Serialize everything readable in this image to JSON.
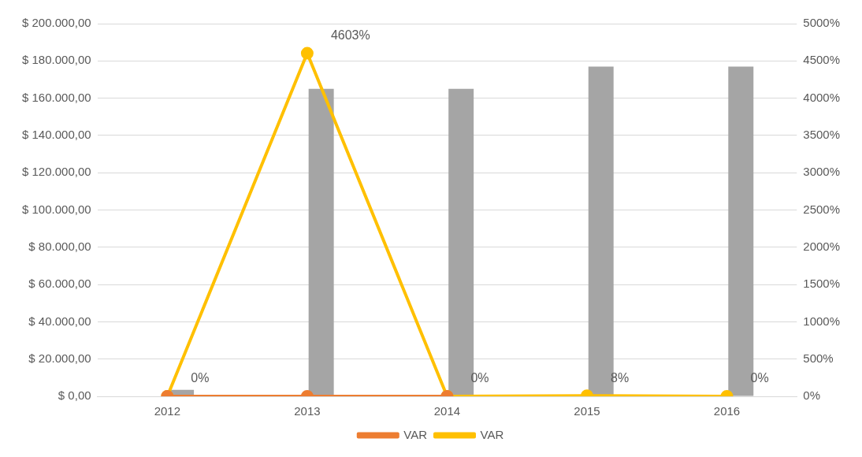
{
  "chart_data": {
    "type": "bar",
    "categories": [
      "2012",
      "2013",
      "2014",
      "2015",
      "2016"
    ],
    "series": [
      {
        "color": "#5b9bd5",
        "values": [
          0,
          0,
          0,
          0,
          0
        ]
      },
      {
        "color": "#a5a5a5",
        "values": [
          3500,
          165000,
          165000,
          177000,
          177000
        ]
      },
      {
        "type": "line",
        "axis": "y2",
        "name": "VAR",
        "color": "#ed7d31",
        "values": [
          0,
          0,
          0,
          null,
          null
        ]
      },
      {
        "type": "line",
        "axis": "y2",
        "name": "VAR",
        "color": "#ffc000",
        "values": [
          0,
          4603,
          0,
          8,
          0
        ],
        "value_labels": [
          "0%",
          "4603%",
          "0%",
          "8%",
          "0%"
        ]
      }
    ],
    "ylim": [
      0,
      200000
    ],
    "yticks": [
      {
        "value": 0,
        "label": "$ 0,00"
      },
      {
        "value": 20000,
        "label": "$ 20.000,00"
      },
      {
        "value": 40000,
        "label": "$ 40.000,00"
      },
      {
        "value": 60000,
        "label": "$ 60.000,00"
      },
      {
        "value": 80000,
        "label": "$ 80.000,00"
      },
      {
        "value": 100000,
        "label": "$ 100.000,00"
      },
      {
        "value": 120000,
        "label": "$ 120.000,00"
      },
      {
        "value": 140000,
        "label": "$ 140.000,00"
      },
      {
        "value": 160000,
        "label": "$ 160.000,00"
      },
      {
        "value": 180000,
        "label": "$ 180.000,00"
      },
      {
        "value": 200000,
        "label": "$ 200.000,00"
      }
    ],
    "y2lim": [
      0,
      5000
    ],
    "y2ticks": [
      {
        "value": 0,
        "label": "0%"
      },
      {
        "value": 500,
        "label": "500%"
      },
      {
        "value": 1000,
        "label": "1000%"
      },
      {
        "value": 1500,
        "label": "1500%"
      },
      {
        "value": 2000,
        "label": "2000%"
      },
      {
        "value": 2500,
        "label": "2500%"
      },
      {
        "value": 3000,
        "label": "3000%"
      },
      {
        "value": 3500,
        "label": "3500%"
      },
      {
        "value": 4000,
        "label": "4000%"
      },
      {
        "value": 4500,
        "label": "4500%"
      },
      {
        "value": 5000,
        "label": "5000%"
      }
    ],
    "grid": "y",
    "legend": "bottom",
    "marker": "circle"
  }
}
